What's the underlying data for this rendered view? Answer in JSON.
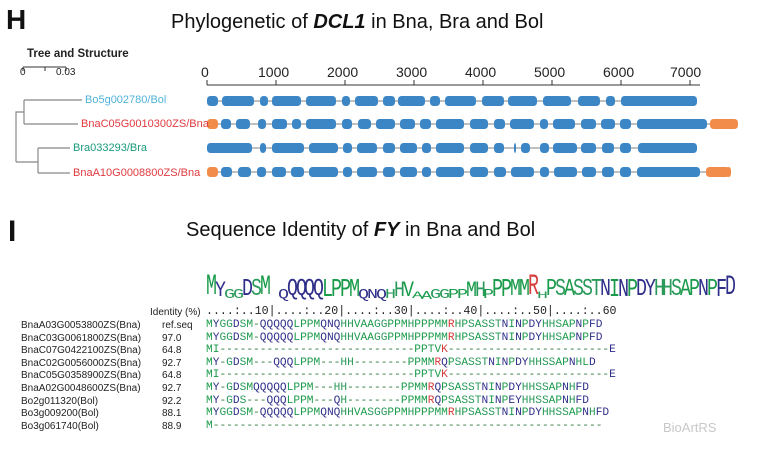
{
  "panel_h": {
    "letter": "H",
    "title_prefix": "Phylogenetic of ",
    "title_gene": "DCL1",
    "title_suffix": " in Bna, Bra and Bol",
    "tree_heading": "Tree and Structure",
    "tree_scale": [
      "0",
      "0.03"
    ],
    "axis_ticks": [
      "0",
      "1000",
      "2000",
      "3000",
      "4000",
      "5000",
      "6000",
      "7000"
    ],
    "genes": [
      {
        "label": "Bo5g002780/Bol",
        "color": "#4fb3d9"
      },
      {
        "label": "BnaC05G0010300ZS/Bna",
        "color": "#e0393e"
      },
      {
        "label": "Bra033293/Bra",
        "color": "#1a9b7a"
      },
      {
        "label": "BnaA10G0008800ZS/Bna",
        "color": "#e0393e"
      }
    ],
    "colors": {
      "exon": "#3d86c6",
      "utr": "#f28c4a",
      "intron": "#999999"
    }
  },
  "panel_i": {
    "letter": "I",
    "title_prefix": "Sequence Identity of ",
    "title_gene": "FY",
    "title_suffix": " in Bna and Bol",
    "identity_label": "Identity (%)",
    "ruler": "....:..10|....:..20|....:..30|....:..40|....:..50|....:..60",
    "rows": [
      {
        "name": "BnaA03G0053800ZS(Bna)",
        "identity": "ref.seq",
        "seq": "MYGGDSM-QQQQQLPPMQNQHHVAAGGPPMHPPPMMRHPSASSTNINPDYHHSAPNPFD"
      },
      {
        "name": "BnaC03G0061800ZS(Bna)",
        "identity": "97.0",
        "seq": "MYGGDSM-QQQQQLPPMQNQHHVAAGGPPMHPPPMMRHPSASSTNINPDYHHSAPNPFD"
      },
      {
        "name": "BnaC07G0422100ZS(Bna)",
        "identity": "64.8",
        "seq": "MI-----------------------------PPTVK------------------------E"
      },
      {
        "name": "BnaC02G0056000ZS(Bna)",
        "identity": "92.7",
        "seq": "MY-GDSM---QQQLPPM---HH--------PPMMRQPSASSTNINPDYHHSSAPNHLD"
      },
      {
        "name": "BnaC05G0358900ZS(Bna)",
        "identity": "64.8",
        "seq": "MI-----------------------------PPTVK------------------------E"
      },
      {
        "name": "BnaA02G0048600ZS(Bna)",
        "identity": "92.7",
        "seq": "MY-GDSMQQQQQLPPM---HH--------PPMMRQPSASSTNINPDYHHSSAPNHFD"
      },
      {
        "name": "Bo2g011320(Bol)",
        "identity": "92.2",
        "seq": "MY-GDS---QQQLPPM---QH--------PPMMRQPSASSTNINPEYHHSSAPNHFD"
      },
      {
        "name": "Bo3g009200(Bol)",
        "identity": "88.1",
        "seq": "MYGGDSM-QQQQQLPPMQNQHHVASGGPPMHPPPMMRHPSASSTNINPDYHHSSAPNHFD"
      },
      {
        "name": "Bo3g061740(Bol)",
        "identity": "88.9",
        "seq": "M----------------------------------------------------------"
      }
    ],
    "residue_colors": {
      "hydrophobic": "#2f2f8a",
      "polar": "#2a9a5a",
      "charged": "#d83c3c",
      "default": "#1a9b4a"
    }
  },
  "watermark": "BioArtRS"
}
